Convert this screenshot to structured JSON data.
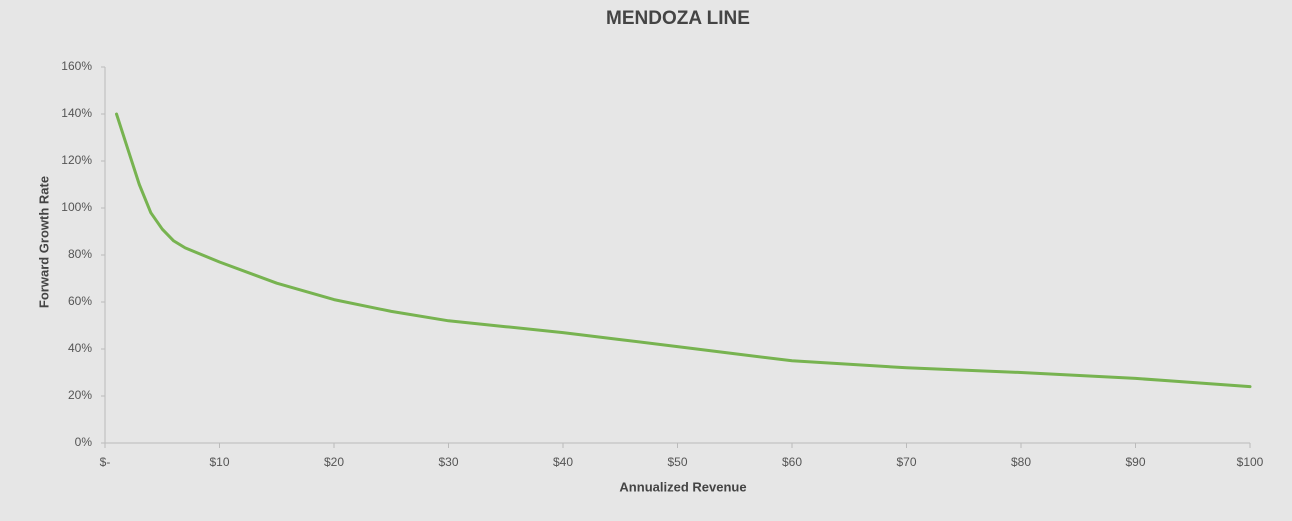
{
  "chart_data": {
    "type": "line",
    "title": "MENDOZA LINE",
    "x_label": "Annualized Revenue",
    "y_label": "Forward Growth Rate",
    "x": [
      1,
      2,
      3,
      4,
      5,
      6,
      7,
      10,
      15,
      20,
      25,
      30,
      35,
      40,
      45,
      50,
      55,
      60,
      70,
      80,
      90,
      100
    ],
    "series": [
      {
        "name": "Forward Growth Rate",
        "color": "#77b350",
        "values": [
          140,
          125,
          110,
          98,
          91,
          86,
          83,
          77,
          68,
          61,
          56,
          52,
          49.5,
          47,
          44,
          41,
          38,
          35,
          32,
          30,
          27.5,
          24
        ]
      }
    ],
    "xlim": [
      0,
      100
    ],
    "xticks": [
      {
        "value": 0,
        "label": "$-"
      },
      {
        "value": 10,
        "label": "$10"
      },
      {
        "value": 20,
        "label": "$20"
      },
      {
        "value": 30,
        "label": "$30"
      },
      {
        "value": 40,
        "label": "$40"
      },
      {
        "value": 50,
        "label": "$50"
      },
      {
        "value": 60,
        "label": "$60"
      },
      {
        "value": 70,
        "label": "$70"
      },
      {
        "value": 80,
        "label": "$80"
      },
      {
        "value": 90,
        "label": "$90"
      },
      {
        "value": 100,
        "label": "$100"
      }
    ],
    "ylim": [
      0,
      160
    ],
    "yticks": [
      {
        "value": 0,
        "label": "0%"
      },
      {
        "value": 20,
        "label": "20%"
      },
      {
        "value": 40,
        "label": "40%"
      },
      {
        "value": 60,
        "label": "60%"
      },
      {
        "value": 80,
        "label": "80%"
      },
      {
        "value": 100,
        "label": "100%"
      },
      {
        "value": 120,
        "label": "120%"
      },
      {
        "value": 140,
        "label": "140%"
      },
      {
        "value": 160,
        "label": "160%"
      }
    ],
    "grid": false
  }
}
